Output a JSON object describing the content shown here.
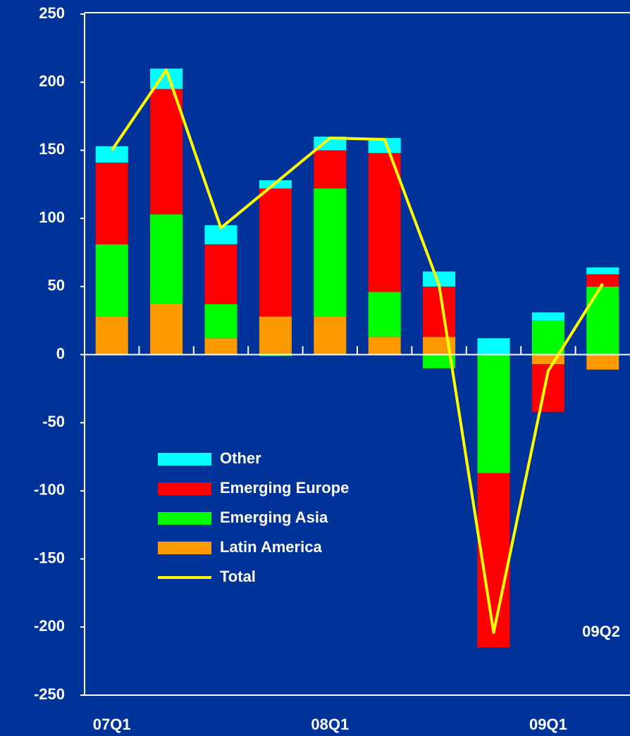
{
  "chart_data": {
    "type": "bar",
    "stacked": true,
    "categories": [
      "07Q1",
      null,
      null,
      null,
      "08Q1",
      null,
      null,
      null,
      "09Q1",
      null
    ],
    "annotation": "09Q2",
    "series": [
      {
        "name": "Other",
        "color": "#00ffff",
        "values": [
          12,
          15,
          14,
          6,
          10,
          11,
          11,
          12,
          6,
          5
        ]
      },
      {
        "name": "Emerging Europe",
        "color": "#ff0000",
        "values": [
          60,
          92,
          44,
          94,
          28,
          102,
          37,
          -128,
          -35,
          9
        ]
      },
      {
        "name": "Emerging Asia",
        "color": "#00ff00",
        "values": [
          53,
          66,
          25,
          -1,
          94,
          33,
          -10,
          -87,
          25,
          50
        ]
      },
      {
        "name": "Latin America",
        "color": "#ff9900",
        "values": [
          28,
          37,
          12,
          28,
          28,
          13,
          13,
          0,
          -7,
          -11
        ]
      },
      {
        "name": "Total",
        "color": "#ffff00",
        "type": "line",
        "values": [
          150,
          209,
          93,
          126,
          159,
          158,
          51,
          -204,
          -12,
          52
        ]
      }
    ],
    "ylim": [
      -250,
      250
    ],
    "yticks": [
      -250,
      -200,
      -150,
      -100,
      -50,
      0,
      50,
      100,
      150,
      200,
      250
    ]
  }
}
